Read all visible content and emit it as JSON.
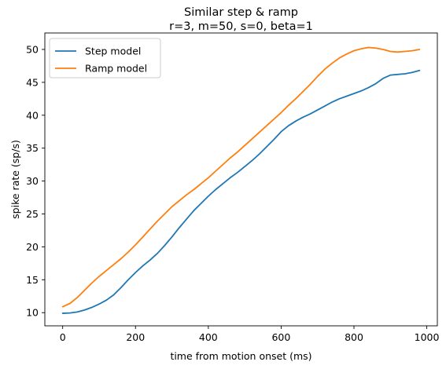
{
  "chart_data": {
    "type": "line",
    "title": "Similar step & ramp",
    "subtitle": "r=3, m=50, s=0, beta=1",
    "xlabel": "time from motion onset (ms)",
    "ylabel": "spike rate (sp/s)",
    "xlim": [
      -49,
      1029
    ],
    "ylim": [
      8.0,
      52.5
    ],
    "xticks": [
      0,
      200,
      400,
      600,
      800,
      1000
    ],
    "yticks": [
      10,
      15,
      20,
      25,
      30,
      35,
      40,
      45,
      50
    ],
    "grid": false,
    "legend_position": "top-left",
    "series": [
      {
        "name": "Step model",
        "color": "#1f77b4",
        "x": [
          0,
          20,
          40,
          60,
          80,
          100,
          120,
          140,
          160,
          180,
          200,
          220,
          240,
          260,
          280,
          300,
          320,
          340,
          360,
          380,
          400,
          420,
          440,
          460,
          480,
          500,
          520,
          540,
          560,
          580,
          600,
          620,
          640,
          660,
          680,
          700,
          720,
          740,
          760,
          780,
          800,
          820,
          840,
          860,
          880,
          900,
          920,
          940,
          960,
          980
        ],
        "values": [
          9.9,
          9.95,
          10.1,
          10.4,
          10.8,
          11.3,
          11.9,
          12.7,
          13.8,
          15.0,
          16.1,
          17.1,
          18.0,
          19.0,
          20.2,
          21.5,
          22.9,
          24.2,
          25.5,
          26.6,
          27.7,
          28.7,
          29.6,
          30.5,
          31.3,
          32.2,
          33.1,
          34.1,
          35.2,
          36.3,
          37.5,
          38.4,
          39.1,
          39.7,
          40.2,
          40.8,
          41.4,
          42.0,
          42.5,
          42.9,
          43.3,
          43.7,
          44.2,
          44.8,
          45.6,
          46.1,
          46.2,
          46.3,
          46.5,
          46.8
        ]
      },
      {
        "name": "Ramp model",
        "color": "#ff7f0e",
        "x": [
          0,
          20,
          40,
          60,
          80,
          100,
          120,
          140,
          160,
          180,
          200,
          220,
          240,
          260,
          280,
          300,
          320,
          340,
          360,
          380,
          400,
          420,
          440,
          460,
          480,
          500,
          520,
          540,
          560,
          580,
          600,
          620,
          640,
          660,
          680,
          700,
          720,
          740,
          760,
          780,
          800,
          820,
          840,
          860,
          880,
          900,
          920,
          940,
          960,
          980
        ],
        "values": [
          10.9,
          11.4,
          12.3,
          13.4,
          14.5,
          15.5,
          16.4,
          17.3,
          18.2,
          19.2,
          20.3,
          21.5,
          22.7,
          23.9,
          25.0,
          26.1,
          27.0,
          27.9,
          28.7,
          29.6,
          30.5,
          31.5,
          32.5,
          33.5,
          34.4,
          35.4,
          36.4,
          37.4,
          38.4,
          39.4,
          40.4,
          41.5,
          42.5,
          43.6,
          44.7,
          45.9,
          47.0,
          47.9,
          48.7,
          49.3,
          49.8,
          50.1,
          50.3,
          50.2,
          50.0,
          49.7,
          49.6,
          49.7,
          49.8,
          50.0
        ]
      }
    ]
  }
}
